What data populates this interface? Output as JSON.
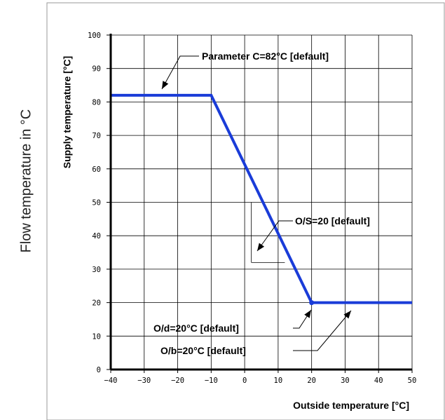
{
  "outer_label": "Flow temperature in °C",
  "chart_data": {
    "type": "line",
    "xlabel": "Outside temperature [°C]",
    "ylabel": "Supply temperature [°C]",
    "xlim": [
      -40,
      50
    ],
    "ylim": [
      0,
      100
    ],
    "x_ticks": [
      -40,
      -30,
      -20,
      -10,
      0,
      10,
      20,
      30,
      40,
      50
    ],
    "y_ticks": [
      0,
      10,
      20,
      30,
      40,
      50,
      60,
      70,
      80,
      90,
      100
    ],
    "grid": true,
    "legend": "none",
    "series": [
      {
        "color": "#1a3cd8",
        "x": [
          -40,
          -10,
          20,
          50
        ],
        "y": [
          82,
          82,
          20,
          20
        ]
      }
    ],
    "annotations": [
      {
        "text": "Parameter C=82°C [default]",
        "x": -25,
        "y": 82
      },
      {
        "text": "O/S=20 [default]",
        "x": 4,
        "y": 37
      },
      {
        "text": "O/d=20°C [default]",
        "x": 20,
        "y": 20
      },
      {
        "text": "O/b=20°C [default]",
        "x": 33,
        "y": 20
      }
    ]
  }
}
